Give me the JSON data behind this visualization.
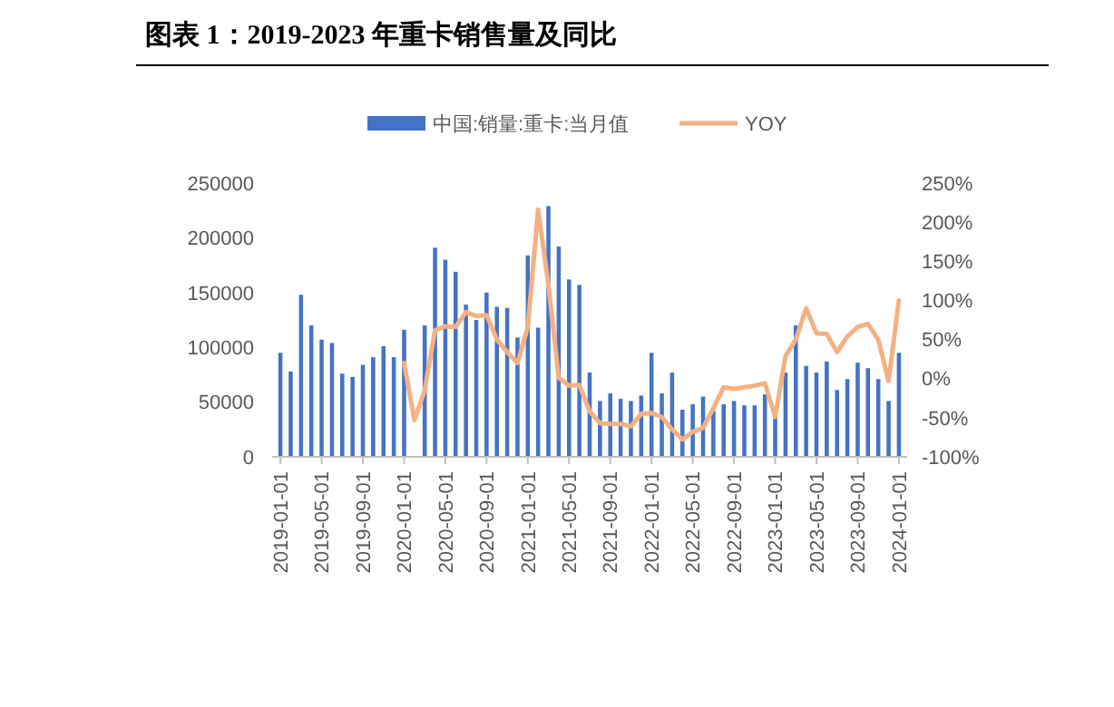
{
  "chart_data": {
    "type": "bar",
    "title": "图表 1：2019-2023 年重卡销售量及同比",
    "categories": [
      "2019-01-01",
      null,
      null,
      null,
      "2019-05-01",
      null,
      null,
      null,
      "2019-09-01",
      null,
      null,
      null,
      "2020-01-01",
      null,
      null,
      null,
      "2020-05-01",
      null,
      null,
      null,
      "2020-09-01",
      null,
      null,
      null,
      "2021-01-01",
      null,
      null,
      null,
      "2021-05-01",
      null,
      null,
      null,
      "2021-09-01",
      null,
      null,
      null,
      "2022-01-01",
      null,
      null,
      null,
      "2022-05-01",
      null,
      null,
      null,
      "2022-09-01",
      null,
      null,
      null,
      "2023-01-01",
      null,
      null,
      null,
      "2023-05-01",
      null,
      null,
      null,
      "2023-09-01",
      null,
      null,
      null,
      "2024-01-01"
    ],
    "series": [
      {
        "name": "中国:销量:重卡:当月值",
        "color": "#4472c4",
        "values": [
          95000,
          78000,
          148000,
          120000,
          107000,
          104000,
          76000,
          73000,
          84000,
          91000,
          101000,
          91000,
          116000,
          null,
          120000,
          191000,
          180000,
          169000,
          139000,
          125000,
          150000,
          137000,
          136000,
          109000,
          184000,
          118000,
          229000,
          192000,
          162000,
          157000,
          77000,
          51000,
          58000,
          53000,
          51000,
          56000,
          95000,
          58000,
          77000,
          43000,
          48000,
          55000,
          42000,
          48000,
          51000,
          47000,
          47000,
          57000,
          36000,
          77000,
          120000,
          83000,
          77000,
          87000,
          61000,
          71000,
          86000,
          81000,
          71000,
          51000,
          95000
        ]
      },
      {
        "name": "YOY",
        "type": "line",
        "axis": "y2",
        "color": "#f4b183",
        "values": [
          null,
          null,
          null,
          null,
          null,
          null,
          null,
          null,
          null,
          null,
          null,
          null,
          20,
          -53,
          -15,
          62,
          67,
          66,
          85,
          80,
          81,
          50,
          34,
          20,
          66,
          216,
          120,
          1,
          -9,
          -8,
          -42,
          -57,
          -58,
          -58,
          -61,
          -45,
          -44,
          -49,
          -65,
          -78,
          -68,
          -63,
          -38,
          -11,
          -13,
          -11,
          -9,
          -6,
          -49,
          29,
          50,
          90,
          58,
          57,
          34,
          54,
          66,
          70,
          50,
          -3,
          100
        ]
      }
    ],
    "ylim": [
      0,
      250000
    ],
    "yticks": [
      0,
      50000,
      100000,
      150000,
      200000,
      250000
    ],
    "y2lim": [
      -100,
      250
    ],
    "y2ticks": [
      {
        "value": -100,
        "label": "-100%"
      },
      {
        "value": -50,
        "label": "-50%"
      },
      {
        "value": 0,
        "label": "0%"
      },
      {
        "value": 50,
        "label": "50%"
      },
      {
        "value": 100,
        "label": "100%"
      },
      {
        "value": 150,
        "label": "150%"
      },
      {
        "value": 200,
        "label": "200%"
      },
      {
        "value": 250,
        "label": "250%"
      }
    ],
    "grid": false,
    "legend": "top",
    "line_style": "solid",
    "marker": "none"
  }
}
